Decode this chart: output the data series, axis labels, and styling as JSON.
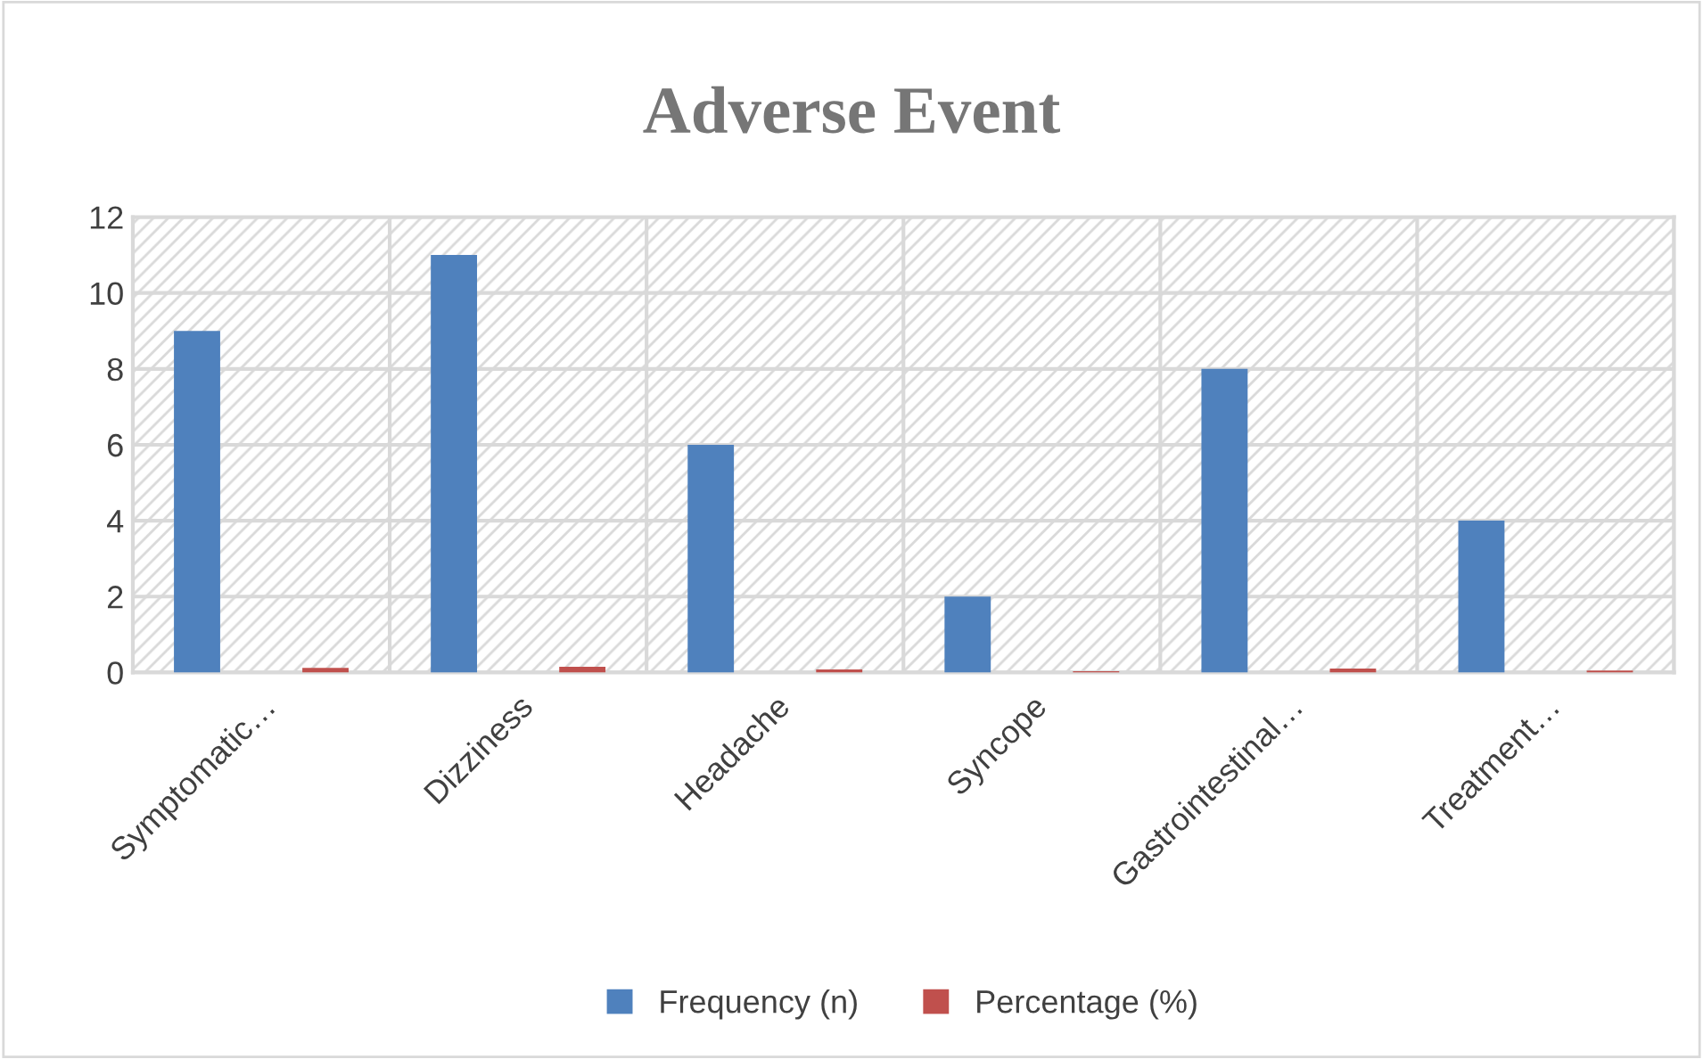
{
  "chart_data": {
    "type": "bar",
    "title": "Adverse Event",
    "categories": [
      "Symptomatic…",
      "Dizziness",
      "Headache",
      "Syncope",
      "Gastrointestinal…",
      "Treatment…"
    ],
    "series": [
      {
        "name": "Frequency (n)",
        "color": "#4f81bd",
        "values": [
          9,
          11,
          6,
          2,
          8,
          4
        ]
      },
      {
        "name": "Percentage (%)",
        "color": "#c0504d",
        "values": [
          0.12,
          0.15,
          0.08,
          0.03,
          0.1,
          0.05
        ]
      }
    ],
    "ylim": [
      0,
      12
    ],
    "yticks": [
      0,
      2,
      4,
      6,
      8,
      10,
      12
    ],
    "grid": true,
    "legend": "bottom"
  }
}
